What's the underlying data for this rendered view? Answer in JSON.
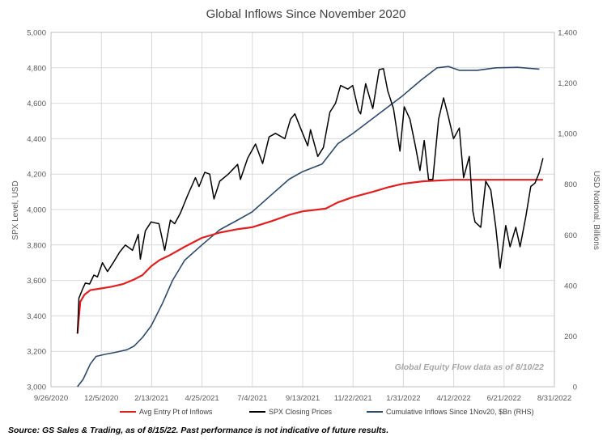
{
  "chart_data": {
    "type": "line",
    "title": "Global Inflows Since November 2020",
    "ylabel": "SPX Level, USD",
    "y2label": "USD Notional, Billions",
    "ylim": [
      3000,
      5000
    ],
    "y2lim": [
      0,
      1400
    ],
    "xlim": [
      "2020-09-26",
      "2022-08-31"
    ],
    "grid": true,
    "legend_position": "bottom",
    "y_ticks": [
      "3,000",
      "3,200",
      "3,400",
      "3,600",
      "3,800",
      "4,000",
      "4,200",
      "4,400",
      "4,600",
      "4,800",
      "5,000"
    ],
    "y2_ticks": [
      "0",
      "200",
      "400",
      "600",
      "800",
      "1,000",
      "1,200",
      "1,400"
    ],
    "x_ticks": [
      "9/26/2020",
      "12/5/2020",
      "2/13/2021",
      "4/25/2021",
      "7/4/2021",
      "9/13/2021",
      "11/22/2021",
      "1/31/2022",
      "4/12/2022",
      "6/21/2022",
      "8/31/2022"
    ],
    "annotation": "Global Equity Flow data as of 8/10/22",
    "series": [
      {
        "name": "Avg Entry Pt of Inflows",
        "axis": "left",
        "color": "#e02020",
        "points": [
          [
            "2020-11-02",
            3300
          ],
          [
            "2020-11-06",
            3480
          ],
          [
            "2020-11-12",
            3520
          ],
          [
            "2020-11-20",
            3545
          ],
          [
            "2020-12-05",
            3555
          ],
          [
            "2020-12-20",
            3565
          ],
          [
            "2021-01-05",
            3580
          ],
          [
            "2021-01-20",
            3605
          ],
          [
            "2021-02-01",
            3630
          ],
          [
            "2021-02-13",
            3680
          ],
          [
            "2021-02-25",
            3715
          ],
          [
            "2021-03-10",
            3740
          ],
          [
            "2021-04-01",
            3790
          ],
          [
            "2021-04-25",
            3840
          ],
          [
            "2021-05-20",
            3870
          ],
          [
            "2021-06-15",
            3890
          ],
          [
            "2021-07-04",
            3900
          ],
          [
            "2021-08-01",
            3935
          ],
          [
            "2021-08-25",
            3970
          ],
          [
            "2021-09-13",
            3990
          ],
          [
            "2021-10-15",
            4005
          ],
          [
            "2021-11-01",
            4040
          ],
          [
            "2021-11-22",
            4070
          ],
          [
            "2021-12-20",
            4100
          ],
          [
            "2022-01-10",
            4125
          ],
          [
            "2022-01-31",
            4145
          ],
          [
            "2022-03-01",
            4160
          ],
          [
            "2022-04-12",
            4168
          ],
          [
            "2022-05-15",
            4168
          ],
          [
            "2022-08-15",
            4168
          ]
        ]
      },
      {
        "name": "SPX Closing Prices",
        "axis": "left",
        "color": "#000000",
        "points": [
          [
            "2020-11-02",
            3300
          ],
          [
            "2020-11-04",
            3500
          ],
          [
            "2020-11-09",
            3550
          ],
          [
            "2020-11-13",
            3585
          ],
          [
            "2020-11-19",
            3580
          ],
          [
            "2020-11-25",
            3630
          ],
          [
            "2020-11-30",
            3620
          ],
          [
            "2020-12-07",
            3700
          ],
          [
            "2020-12-14",
            3650
          ],
          [
            "2020-12-22",
            3700
          ],
          [
            "2020-12-31",
            3760
          ],
          [
            "2021-01-08",
            3800
          ],
          [
            "2021-01-18",
            3770
          ],
          [
            "2021-01-26",
            3860
          ],
          [
            "2021-01-29",
            3720
          ],
          [
            "2021-02-05",
            3880
          ],
          [
            "2021-02-13",
            3930
          ],
          [
            "2021-02-24",
            3920
          ],
          [
            "2021-03-04",
            3770
          ],
          [
            "2021-03-12",
            3940
          ],
          [
            "2021-03-18",
            3920
          ],
          [
            "2021-03-26",
            3980
          ],
          [
            "2021-04-05",
            4080
          ],
          [
            "2021-04-16",
            4180
          ],
          [
            "2021-04-21",
            4130
          ],
          [
            "2021-04-29",
            4210
          ],
          [
            "2021-05-06",
            4200
          ],
          [
            "2021-05-12",
            4060
          ],
          [
            "2021-05-20",
            4160
          ],
          [
            "2021-06-01",
            4200
          ],
          [
            "2021-06-14",
            4255
          ],
          [
            "2021-06-18",
            4170
          ],
          [
            "2021-06-28",
            4290
          ],
          [
            "2021-07-09",
            4370
          ],
          [
            "2021-07-19",
            4260
          ],
          [
            "2021-07-28",
            4410
          ],
          [
            "2021-08-06",
            4430
          ],
          [
            "2021-08-19",
            4400
          ],
          [
            "2021-08-27",
            4510
          ],
          [
            "2021-09-02",
            4540
          ],
          [
            "2021-09-10",
            4460
          ],
          [
            "2021-09-20",
            4360
          ],
          [
            "2021-09-24",
            4450
          ],
          [
            "2021-10-04",
            4300
          ],
          [
            "2021-10-12",
            4350
          ],
          [
            "2021-10-21",
            4550
          ],
          [
            "2021-10-29",
            4600
          ],
          [
            "2021-11-05",
            4700
          ],
          [
            "2021-11-15",
            4680
          ],
          [
            "2021-11-22",
            4700
          ],
          [
            "2021-11-30",
            4560
          ],
          [
            "2021-12-03",
            4540
          ],
          [
            "2021-12-10",
            4710
          ],
          [
            "2021-12-20",
            4570
          ],
          [
            "2021-12-29",
            4790
          ],
          [
            "2022-01-04",
            4795
          ],
          [
            "2022-01-10",
            4670
          ],
          [
            "2022-01-18",
            4570
          ],
          [
            "2022-01-24",
            4410
          ],
          [
            "2022-01-27",
            4330
          ],
          [
            "2022-02-02",
            4580
          ],
          [
            "2022-02-10",
            4510
          ],
          [
            "2022-02-18",
            4350
          ],
          [
            "2022-02-24",
            4220
          ],
          [
            "2022-03-02",
            4390
          ],
          [
            "2022-03-08",
            4170
          ],
          [
            "2022-03-14",
            4170
          ],
          [
            "2022-03-22",
            4510
          ],
          [
            "2022-03-29",
            4630
          ],
          [
            "2022-04-05",
            4520
          ],
          [
            "2022-04-12",
            4400
          ],
          [
            "2022-04-20",
            4460
          ],
          [
            "2022-04-26",
            4180
          ],
          [
            "2022-05-04",
            4300
          ],
          [
            "2022-05-09",
            3990
          ],
          [
            "2022-05-12",
            3930
          ],
          [
            "2022-05-20",
            3900
          ],
          [
            "2022-05-27",
            4160
          ],
          [
            "2022-06-03",
            4110
          ],
          [
            "2022-06-10",
            3900
          ],
          [
            "2022-06-16",
            3670
          ],
          [
            "2022-06-24",
            3910
          ],
          [
            "2022-06-30",
            3790
          ],
          [
            "2022-07-08",
            3900
          ],
          [
            "2022-07-14",
            3790
          ],
          [
            "2022-07-22",
            3960
          ],
          [
            "2022-07-29",
            4130
          ],
          [
            "2022-08-04",
            4150
          ],
          [
            "2022-08-10",
            4210
          ],
          [
            "2022-08-15",
            4290
          ]
        ]
      },
      {
        "name": "Cumulative Inflows Since 1Nov20, $Bn (RHS)",
        "axis": "right",
        "color": "#2e4a6b",
        "points": [
          [
            "2020-11-02",
            0
          ],
          [
            "2020-11-10",
            30
          ],
          [
            "2020-11-20",
            90
          ],
          [
            "2020-11-28",
            120
          ],
          [
            "2020-12-10",
            128
          ],
          [
            "2020-12-25",
            136
          ],
          [
            "2021-01-10",
            146
          ],
          [
            "2021-01-20",
            160
          ],
          [
            "2021-02-01",
            195
          ],
          [
            "2021-02-13",
            240
          ],
          [
            "2021-03-01",
            330
          ],
          [
            "2021-03-15",
            420
          ],
          [
            "2021-04-01",
            500
          ],
          [
            "2021-04-25",
            560
          ],
          [
            "2021-05-20",
            620
          ],
          [
            "2021-06-15",
            660
          ],
          [
            "2021-07-04",
            690
          ],
          [
            "2021-08-01",
            760
          ],
          [
            "2021-08-25",
            820
          ],
          [
            "2021-09-13",
            850
          ],
          [
            "2021-10-10",
            880
          ],
          [
            "2021-11-01",
            960
          ],
          [
            "2021-11-22",
            1000
          ],
          [
            "2021-12-20",
            1060
          ],
          [
            "2022-01-31",
            1150
          ],
          [
            "2022-02-25",
            1210
          ],
          [
            "2022-03-20",
            1260
          ],
          [
            "2022-04-05",
            1265
          ],
          [
            "2022-04-20",
            1250
          ],
          [
            "2022-05-15",
            1250
          ],
          [
            "2022-06-10",
            1260
          ],
          [
            "2022-07-10",
            1262
          ],
          [
            "2022-08-10",
            1255
          ]
        ]
      }
    ]
  },
  "footer": {
    "source_note": "Source: GS Sales & Trading, as of 8/15/22. Past performance is not indicative of future results."
  },
  "colors": {
    "grid": "#d9d9d9",
    "axis_text": "#595959"
  }
}
